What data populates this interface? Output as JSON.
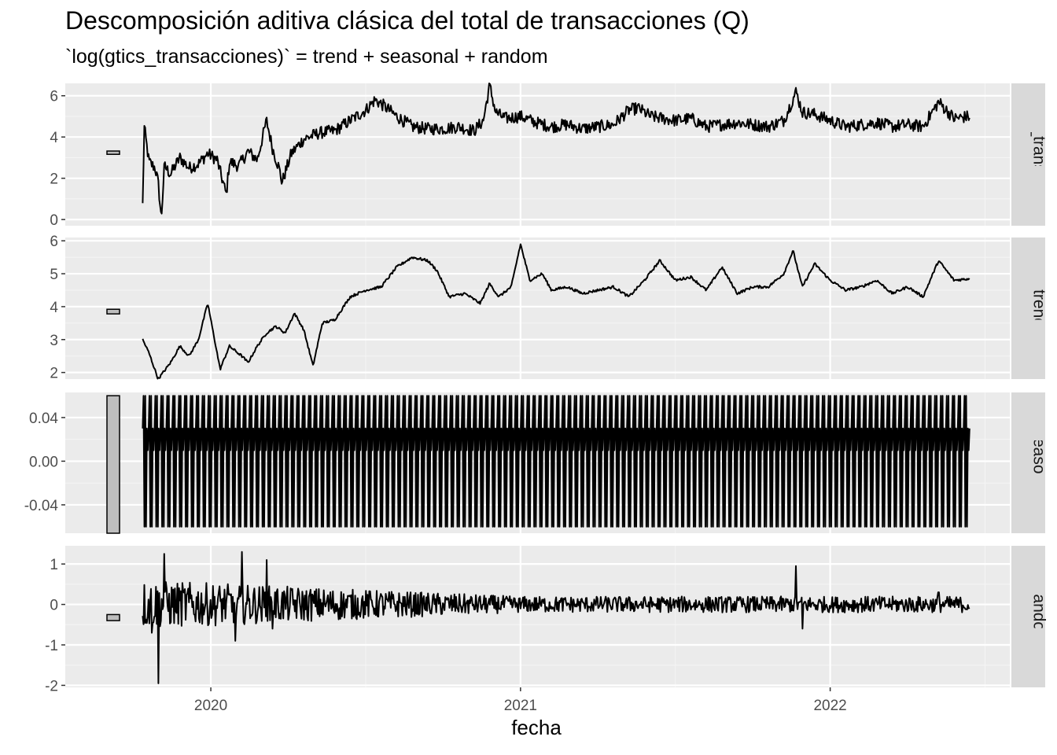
{
  "chart_data": {
    "type": "line",
    "title": "Descomposición aditiva clásica del total de transacciones (Q)",
    "subtitle": "`log(gtics_transacciones)` = trend + seasonal + random",
    "xlabel": "fecha",
    "xlim": [
      2019.53,
      2022.58
    ],
    "x_ticks": [
      "2020",
      "2021",
      "2022"
    ],
    "x_start": 2019.78,
    "x_end": 2022.45,
    "grid": true,
    "panels": [
      {
        "strip": "`log(gtics_transacciones)`",
        "ylim": [
          -0.3,
          6.6
        ],
        "y_ticks": [
          "0",
          "2",
          "4",
          "6"
        ],
        "y_tick_values": [
          0,
          2,
          4,
          6
        ],
        "bar_range": [
          3.16,
          3.32
        ],
        "points": [
          [
            2019.78,
            0.7
          ],
          [
            2019.785,
            4.5
          ],
          [
            2019.8,
            2.8
          ],
          [
            2019.82,
            2.5
          ],
          [
            2019.83,
            1.8
          ],
          [
            2019.84,
            0.0
          ],
          [
            2019.85,
            2.6
          ],
          [
            2019.87,
            2.2
          ],
          [
            2019.9,
            3.0
          ],
          [
            2019.93,
            2.5
          ],
          [
            2019.96,
            2.7
          ],
          [
            2019.99,
            3.2
          ],
          [
            2020.02,
            2.9
          ],
          [
            2020.05,
            1.2
          ],
          [
            2020.06,
            2.8
          ],
          [
            2020.09,
            2.6
          ],
          [
            2020.12,
            3.3
          ],
          [
            2020.15,
            2.9
          ],
          [
            2020.18,
            4.8
          ],
          [
            2020.2,
            3.4
          ],
          [
            2020.22,
            2.5
          ],
          [
            2020.23,
            1.8
          ],
          [
            2020.26,
            3.2
          ],
          [
            2020.3,
            3.9
          ],
          [
            2020.35,
            4.2
          ],
          [
            2020.4,
            4.3
          ],
          [
            2020.45,
            4.8
          ],
          [
            2020.5,
            5.3
          ],
          [
            2020.53,
            5.8
          ],
          [
            2020.56,
            5.5
          ],
          [
            2020.6,
            5.0
          ],
          [
            2020.65,
            4.5
          ],
          [
            2020.7,
            4.4
          ],
          [
            2020.75,
            4.4
          ],
          [
            2020.8,
            4.5
          ],
          [
            2020.85,
            4.3
          ],
          [
            2020.88,
            4.8
          ],
          [
            2020.9,
            6.5
          ],
          [
            2020.92,
            5.2
          ],
          [
            2020.95,
            4.9
          ],
          [
            2021.0,
            5.0
          ],
          [
            2021.05,
            4.7
          ],
          [
            2021.1,
            4.5
          ],
          [
            2021.15,
            4.6
          ],
          [
            2021.2,
            4.4
          ],
          [
            2021.25,
            4.5
          ],
          [
            2021.3,
            4.6
          ],
          [
            2021.35,
            5.3
          ],
          [
            2021.38,
            5.4
          ],
          [
            2021.42,
            5.0
          ],
          [
            2021.46,
            4.9
          ],
          [
            2021.5,
            4.8
          ],
          [
            2021.55,
            4.9
          ],
          [
            2021.6,
            4.5
          ],
          [
            2021.65,
            4.6
          ],
          [
            2021.7,
            4.7
          ],
          [
            2021.75,
            4.6
          ],
          [
            2021.8,
            4.5
          ],
          [
            2021.85,
            4.8
          ],
          [
            2021.89,
            6.2
          ],
          [
            2021.91,
            5.2
          ],
          [
            2021.95,
            5.1
          ],
          [
            2022.0,
            4.8
          ],
          [
            2022.05,
            4.5
          ],
          [
            2022.1,
            4.6
          ],
          [
            2022.15,
            4.7
          ],
          [
            2022.2,
            4.5
          ],
          [
            2022.25,
            4.6
          ],
          [
            2022.3,
            4.5
          ],
          [
            2022.35,
            5.7
          ],
          [
            2022.4,
            4.9
          ],
          [
            2022.45,
            5.0
          ]
        ],
        "noise": 0.3
      },
      {
        "strip": "trend",
        "ylim": [
          1.8,
          6.1
        ],
        "y_ticks": [
          "2",
          "3",
          "4",
          "5",
          "6"
        ],
        "y_tick_values": [
          2,
          3,
          4,
          5,
          6
        ],
        "bar_range": [
          3.78,
          3.92
        ],
        "points": [
          [
            2019.78,
            3.0
          ],
          [
            2019.8,
            2.6
          ],
          [
            2019.83,
            1.8
          ],
          [
            2019.87,
            2.3
          ],
          [
            2019.9,
            2.8
          ],
          [
            2019.93,
            2.5
          ],
          [
            2019.96,
            3.0
          ],
          [
            2019.99,
            4.1
          ],
          [
            2020.03,
            2.1
          ],
          [
            2020.06,
            2.8
          ],
          [
            2020.1,
            2.5
          ],
          [
            2020.12,
            2.3
          ],
          [
            2020.15,
            2.8
          ],
          [
            2020.18,
            3.2
          ],
          [
            2020.21,
            3.4
          ],
          [
            2020.24,
            3.2
          ],
          [
            2020.27,
            3.8
          ],
          [
            2020.3,
            3.3
          ],
          [
            2020.33,
            2.2
          ],
          [
            2020.36,
            3.5
          ],
          [
            2020.4,
            3.6
          ],
          [
            2020.45,
            4.3
          ],
          [
            2020.5,
            4.5
          ],
          [
            2020.55,
            4.6
          ],
          [
            2020.6,
            5.2
          ],
          [
            2020.65,
            5.5
          ],
          [
            2020.7,
            5.4
          ],
          [
            2020.73,
            5.1
          ],
          [
            2020.77,
            4.3
          ],
          [
            2020.82,
            4.4
          ],
          [
            2020.87,
            4.1
          ],
          [
            2020.9,
            4.7
          ],
          [
            2020.93,
            4.3
          ],
          [
            2020.97,
            4.6
          ],
          [
            2021.0,
            5.9
          ],
          [
            2021.03,
            4.8
          ],
          [
            2021.07,
            5.0
          ],
          [
            2021.1,
            4.5
          ],
          [
            2021.15,
            4.6
          ],
          [
            2021.2,
            4.4
          ],
          [
            2021.25,
            4.5
          ],
          [
            2021.3,
            4.6
          ],
          [
            2021.35,
            4.3
          ],
          [
            2021.4,
            4.8
          ],
          [
            2021.45,
            5.4
          ],
          [
            2021.5,
            4.8
          ],
          [
            2021.55,
            4.9
          ],
          [
            2021.6,
            4.5
          ],
          [
            2021.65,
            5.2
          ],
          [
            2021.7,
            4.4
          ],
          [
            2021.75,
            4.6
          ],
          [
            2021.8,
            4.6
          ],
          [
            2021.85,
            5.0
          ],
          [
            2021.88,
            5.7
          ],
          [
            2021.91,
            4.6
          ],
          [
            2021.95,
            5.3
          ],
          [
            2022.0,
            4.8
          ],
          [
            2022.05,
            4.5
          ],
          [
            2022.1,
            4.6
          ],
          [
            2022.15,
            4.8
          ],
          [
            2022.2,
            4.4
          ],
          [
            2022.25,
            4.6
          ],
          [
            2022.3,
            4.3
          ],
          [
            2022.35,
            5.4
          ],
          [
            2022.4,
            4.8
          ],
          [
            2022.45,
            4.85
          ]
        ],
        "noise": 0.04
      },
      {
        "strip": "seasonal",
        "ylim": [
          -0.066,
          0.063
        ],
        "y_ticks": [
          "-0.04",
          "0.00",
          "0.04"
        ],
        "y_tick_values": [
          -0.04,
          0.0,
          0.04
        ],
        "bar_range": [
          -0.066,
          0.06
        ],
        "pattern": [
          0.03,
          0.06,
          -0.06,
          0.06,
          -0.06,
          0.03,
          0.01
        ],
        "repeats": 140
      },
      {
        "strip": "random",
        "ylim": [
          -2.05,
          1.45
        ],
        "y_ticks": [
          "-2",
          "-1",
          "0",
          "1"
        ],
        "y_tick_values": [
          -2,
          -1,
          0,
          1
        ],
        "bar_range": [
          -0.4,
          -0.25
        ],
        "spikes": [
          [
            2019.83,
            -1.95
          ],
          [
            2019.85,
            1.25
          ],
          [
            2019.81,
            -0.7
          ],
          [
            2020.08,
            -0.9
          ],
          [
            2020.1,
            1.3
          ],
          [
            2020.18,
            1.1
          ],
          [
            2020.2,
            -0.6
          ],
          [
            2021.0,
            -0.1
          ],
          [
            2021.89,
            0.95
          ],
          [
            2021.91,
            -0.6
          ],
          [
            2022.35,
            0.3
          ]
        ],
        "amplitude_start": 0.6,
        "amplitude_end": 0.2
      }
    ]
  }
}
